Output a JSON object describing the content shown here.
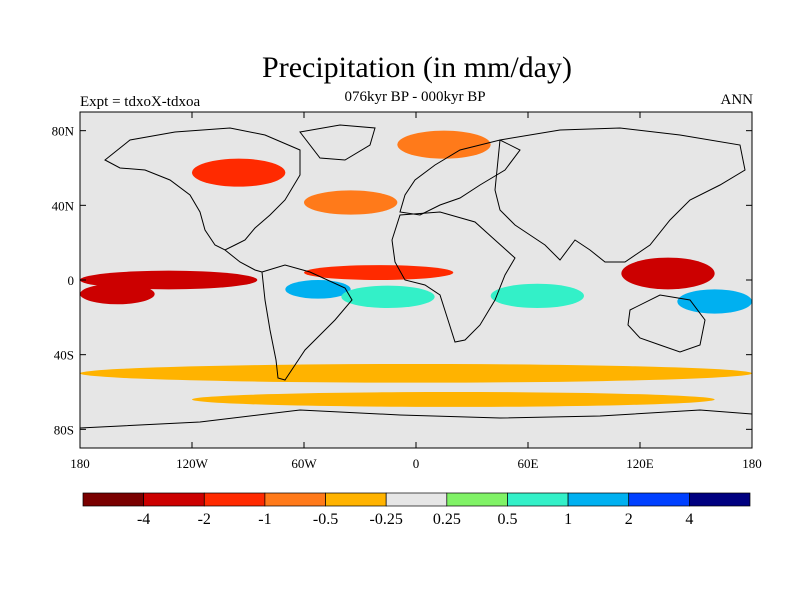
{
  "title": "Precipitation (in mm/day)",
  "subtitle": "076kyr BP - 000kyr BP",
  "left_label": "Expt = tdxoX-tdxoa",
  "right_label": "ANN",
  "axes": {
    "lat_ticks": [
      {
        "value": 80,
        "label": "80N"
      },
      {
        "value": 40,
        "label": "40N"
      },
      {
        "value": 0,
        "label": "0"
      },
      {
        "value": -40,
        "label": "40S"
      },
      {
        "value": -80,
        "label": "80S"
      }
    ],
    "lon_ticks": [
      {
        "value": -180,
        "label": "180"
      },
      {
        "value": -120,
        "label": "120W"
      },
      {
        "value": -60,
        "label": "60W"
      },
      {
        "value": 0,
        "label": "0"
      },
      {
        "value": 60,
        "label": "60E"
      },
      {
        "value": 120,
        "label": "120E"
      },
      {
        "value": 180,
        "label": "180"
      }
    ]
  },
  "colorbar": {
    "colors": [
      "#7a0000",
      "#cc0000",
      "#ff2a00",
      "#ff7a1a",
      "#ffb300",
      "#e6e6e6",
      "#80f266",
      "#33f0c8",
      "#00b0f0",
      "#0040ff",
      "#000080"
    ],
    "labels": [
      "-4",
      "-2",
      "-1",
      "-0.5",
      "-0.25",
      "0.25",
      "0.5",
      "1",
      "2",
      "4"
    ]
  },
  "map": {
    "background": "#e6e6e6",
    "regions": [
      {
        "name": "anomaly-central-pacific-equatorial-band",
        "lon": [
          -180,
          -85
        ],
        "lat": [
          -5,
          5
        ],
        "color": "#cc0000"
      },
      {
        "name": "anomaly-south-pacific-band",
        "lon": [
          -180,
          -140
        ],
        "lat": [
          -13,
          -2
        ],
        "color": "#cc0000"
      },
      {
        "name": "anomaly-atlantic-itcz-band",
        "lon": [
          -60,
          20
        ],
        "lat": [
          0,
          8
        ],
        "color": "#ff2a00"
      },
      {
        "name": "anomaly-amazon-negative",
        "lon": [
          -70,
          -35
        ],
        "lat": [
          -10,
          0
        ],
        "color": "#00b0f0"
      },
      {
        "name": "anomaly-south-atlantic-positive",
        "lon": [
          -40,
          10
        ],
        "lat": [
          -15,
          -3
        ],
        "color": "#33f0c8"
      },
      {
        "name": "anomaly-indian-ocean-positive",
        "lon": [
          40,
          90
        ],
        "lat": [
          -15,
          -2
        ],
        "color": "#33f0c8"
      },
      {
        "name": "anomaly-maritime-continent-negative",
        "lon": [
          110,
          160
        ],
        "lat": [
          -5,
          12
        ],
        "color": "#cc0000"
      },
      {
        "name": "anomaly-west-pacific-positive",
        "lon": [
          140,
          180
        ],
        "lat": [
          -18,
          -5
        ],
        "color": "#00b0f0"
      },
      {
        "name": "anomaly-north-atlantic-negative",
        "lon": [
          -60,
          -10
        ],
        "lat": [
          35,
          48
        ],
        "color": "#ff7a1a"
      },
      {
        "name": "anomaly-north-america-negative",
        "lon": [
          -120,
          -70
        ],
        "lat": [
          50,
          65
        ],
        "color": "#ff2a00"
      },
      {
        "name": "anomaly-arctic-negative",
        "lon": [
          -10,
          40
        ],
        "lat": [
          65,
          80
        ],
        "color": "#ff7a1a"
      },
      {
        "name": "anomaly-southern-ocean-band",
        "lon": [
          -180,
          180
        ],
        "lat": [
          -55,
          -45
        ],
        "color": "#ffb300"
      },
      {
        "name": "anomaly-southern-ocean-band-2",
        "lon": [
          -120,
          160
        ],
        "lat": [
          -68,
          -60
        ],
        "color": "#ffb300"
      }
    ]
  }
}
